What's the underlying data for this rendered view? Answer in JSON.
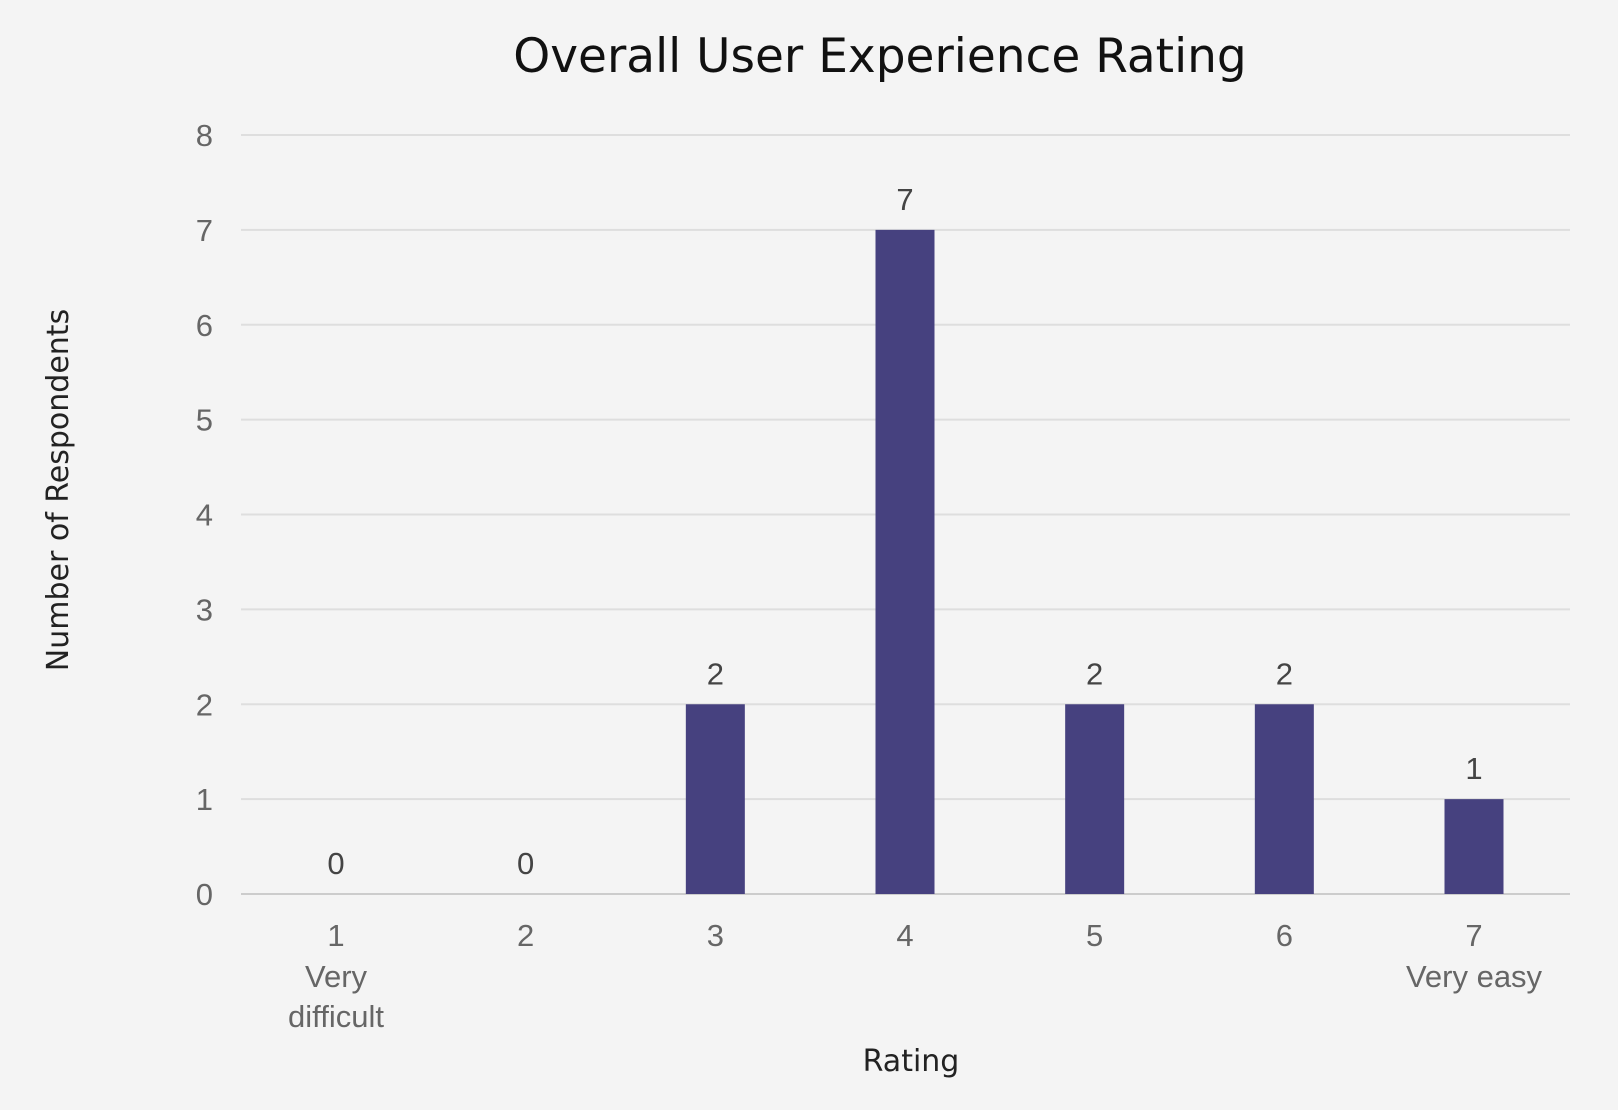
{
  "chart_data": {
    "type": "bar",
    "title": "Overall User Experience Rating",
    "xlabel": "Rating",
    "ylabel": "Number of Respondents",
    "categories": [
      "1",
      "2",
      "3",
      "4",
      "5",
      "6",
      "7"
    ],
    "category_sublabels": [
      [
        "Very",
        "difficult"
      ],
      [],
      [],
      [],
      [],
      [],
      [
        "Very easy"
      ]
    ],
    "values": [
      0,
      0,
      2,
      7,
      2,
      2,
      1
    ],
    "ylim": [
      0,
      8
    ],
    "yticks": [
      0,
      1,
      2,
      3,
      4,
      5,
      6,
      7,
      8
    ],
    "grid": true,
    "legend": "none",
    "bar_color": "#46417f"
  }
}
